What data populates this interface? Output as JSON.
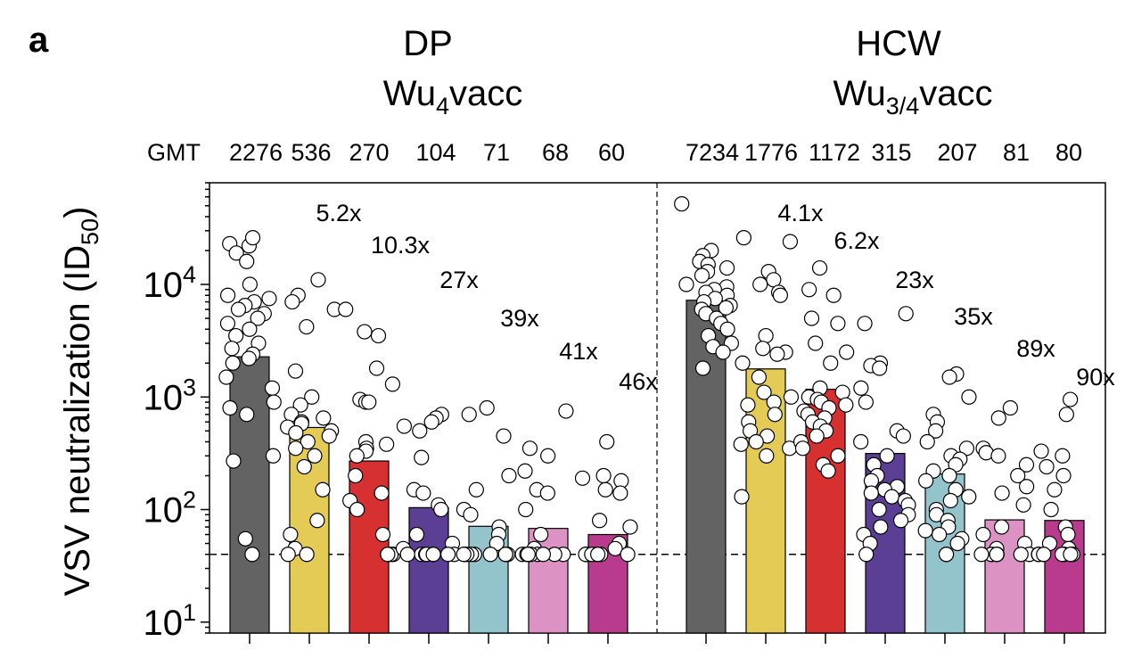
{
  "panel_label": "a",
  "groups": [
    {
      "title_line1": "DP",
      "title_line2_main": "Wu",
      "title_line2_sub": "4",
      "title_line2_tail": "vacc"
    },
    {
      "title_line1": "HCW",
      "title_line2_main": "Wu",
      "title_line2_sub": "3/4",
      "title_line2_tail": "vacc"
    }
  ],
  "gmt_label": "GMT",
  "chart_data": {
    "type": "bar",
    "ylabel_main": "VSV neutralization (ID",
    "ylabel_sub": "50",
    "ylabel_tail": ")",
    "yscale": "log",
    "ylim": [
      8,
      80000
    ],
    "y_ticks": [
      {
        "base": "10",
        "exp": "1",
        "value": 10
      },
      {
        "base": "10",
        "exp": "2",
        "value": 100
      },
      {
        "base": "10",
        "exp": "3",
        "value": 1000
      },
      {
        "base": "10",
        "exp": "4",
        "value": 10000
      }
    ],
    "detection_limit": 40,
    "bar_colors": [
      "#636363",
      "#e3cb55",
      "#d63030",
      "#5b3f95",
      "#93c4cc",
      "#dc92c2",
      "#b83b8e"
    ],
    "series": [
      {
        "group": "DP",
        "gmt": [
          2276,
          536,
          270,
          104,
          71,
          68,
          60
        ],
        "fold": [
          "",
          "5.2x",
          "10.3x",
          "27x",
          "39x",
          "41x",
          "46x"
        ],
        "points": [
          [
            22000,
            26000,
            23000,
            19000,
            16000,
            10000,
            8000,
            7500,
            7000,
            6500,
            6000,
            5500,
            5000,
            4500,
            4000,
            3500,
            3000,
            2700,
            2400,
            2200,
            2000,
            1500,
            1200,
            900,
            800,
            700,
            300,
            270,
            55,
            40
          ],
          [
            11000,
            8000,
            7000,
            6000,
            4200,
            1700,
            1000,
            850,
            700,
            650,
            600,
            580,
            540,
            500,
            480,
            450,
            400,
            350,
            300,
            240,
            150,
            80,
            60,
            45,
            40,
            40
          ],
          [
            6000,
            3800,
            3500,
            1800,
            1300,
            950,
            900,
            900,
            400,
            380,
            350,
            330,
            300,
            200,
            140,
            120,
            100,
            60,
            40,
            40,
            40,
            40
          ],
          [
            700,
            650,
            600,
            550,
            500,
            290,
            150,
            140,
            110,
            100,
            60,
            50,
            45,
            40,
            40,
            40,
            40,
            40,
            40,
            40,
            40
          ],
          [
            800,
            700,
            450,
            200,
            150,
            100,
            90,
            70,
            60,
            50,
            40,
            40,
            40,
            40,
            40,
            40,
            40,
            40,
            40
          ],
          [
            750,
            350,
            300,
            220,
            150,
            140,
            100,
            60,
            45,
            40,
            40,
            40,
            40,
            40,
            40,
            40,
            40,
            40
          ],
          [
            400,
            200,
            190,
            180,
            150,
            140,
            80,
            70,
            50,
            45,
            40,
            40,
            40,
            40,
            40,
            40,
            40,
            40
          ]
        ]
      },
      {
        "group": "HCW",
        "gmt": [
          7234,
          1776,
          1172,
          315,
          207,
          81,
          80
        ],
        "fold": [
          "",
          "4.1x",
          "6.2x",
          "23x",
          "35x",
          "89x",
          "90x"
        ],
        "points": [
          [
            52000,
            20000,
            18000,
            16000,
            15000,
            14000,
            13000,
            12000,
            10000,
            9500,
            9000,
            8500,
            8000,
            7500,
            7000,
            6500,
            6200,
            6000,
            5500,
            5000,
            4500,
            4000,
            3500,
            3000,
            2800,
            2500,
            1800
          ],
          [
            26000,
            24000,
            13000,
            11000,
            10000,
            8500,
            8000,
            3500,
            2700,
            2500,
            2400,
            2000,
            1500,
            1100,
            1000,
            900,
            850,
            700,
            600,
            500,
            450,
            400,
            380,
            350,
            300,
            130
          ],
          [
            14000,
            9000,
            8000,
            5000,
            4500,
            3000,
            2500,
            2000,
            1200,
            1100,
            1000,
            950,
            900,
            850,
            800,
            750,
            700,
            650,
            600,
            550,
            500,
            450,
            400,
            350,
            300,
            250,
            220
          ],
          [
            5500,
            4500,
            2000,
            1900,
            1800,
            1200,
            900,
            500,
            450,
            400,
            300,
            250,
            200,
            180,
            160,
            150,
            140,
            130,
            120,
            110,
            100,
            90,
            80,
            70,
            60,
            50,
            40
          ],
          [
            1600,
            1500,
            1000,
            700,
            600,
            500,
            400,
            350,
            300,
            280,
            250,
            220,
            200,
            180,
            150,
            130,
            120,
            100,
            90,
            80,
            70,
            65,
            60,
            55,
            50,
            40,
            40
          ],
          [
            800,
            650,
            350,
            320,
            300,
            250,
            200,
            160,
            140,
            110,
            70,
            60,
            50,
            45,
            40,
            40,
            40,
            40,
            40,
            40,
            40
          ],
          [
            950,
            700,
            330,
            300,
            240,
            200,
            150,
            100,
            70,
            60,
            50,
            45,
            40,
            40,
            40,
            40,
            40,
            40,
            40,
            40,
            40
          ]
        ]
      }
    ]
  }
}
